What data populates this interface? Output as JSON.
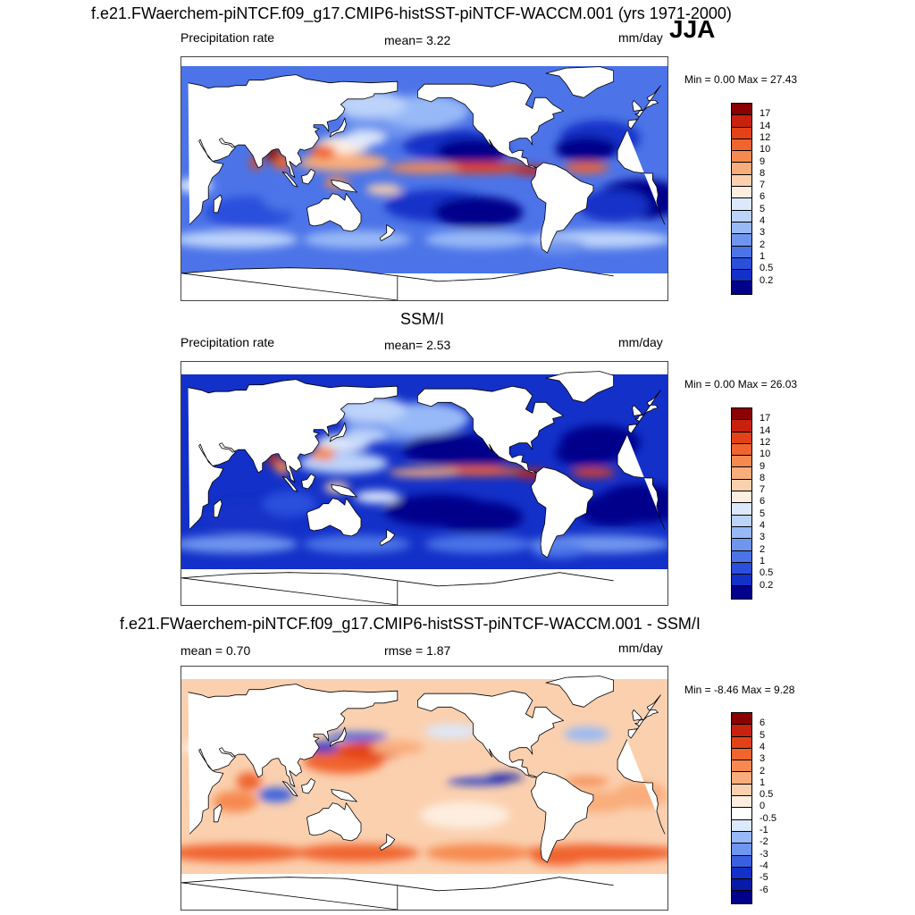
{
  "main_title": "f.e21.FWaerchem-piNTCF.f09_g17.CMIP6-histSST-piNTCF-WACCM.001 (yrs 1971-2000)",
  "season": "JJA",
  "panel1": {
    "left_label": "Precipitation rate",
    "mean": "mean=   3.22",
    "units": "mm/day",
    "minmax": "Min =   0.00 Max =  27.43",
    "levels": [
      "17",
      "14",
      "12",
      "10",
      "9",
      "8",
      "7",
      "6",
      "5",
      "4",
      "3",
      "2",
      "1",
      "0.5",
      "0.2"
    ],
    "colors": [
      "#8b0000",
      "#c8220f",
      "#e34218",
      "#f0642e",
      "#f6894f",
      "#f9ad7c",
      "#fbd0af",
      "#fdeee0",
      "#dce8fb",
      "#bcd3fa",
      "#98b9f7",
      "#6f95ef",
      "#4c74e8",
      "#2a4fdc",
      "#1330c8",
      "#00008b"
    ]
  },
  "panel2": {
    "title": "SSM/I",
    "left_label": "Precipitation rate",
    "mean": "mean=   2.53",
    "units": "mm/day",
    "minmax": "Min =   0.00 Max =  26.03",
    "levels": [
      "17",
      "14",
      "12",
      "10",
      "9",
      "8",
      "7",
      "6",
      "5",
      "4",
      "3",
      "2",
      "1",
      "0.5",
      "0.2"
    ],
    "colors": [
      "#8b0000",
      "#c8220f",
      "#e34218",
      "#f0642e",
      "#f6894f",
      "#f9ad7c",
      "#fbd0af",
      "#fdeee0",
      "#dce8fb",
      "#bcd3fa",
      "#98b9f7",
      "#6f95ef",
      "#4c74e8",
      "#2a4fdc",
      "#1330c8",
      "#00008b"
    ]
  },
  "panel3": {
    "title": "f.e21.FWaerchem-piNTCF.f09_g17.CMIP6-histSST-piNTCF-WACCM.001 - SSM/I",
    "mean": "mean =   0.70",
    "rmse": "rmse =   1.87",
    "units": "mm/day",
    "minmax": "Min =  -8.46 Max =   9.28",
    "levels": [
      "6",
      "5",
      "4",
      "3",
      "2",
      "1",
      "0.5",
      "0",
      "-0.5",
      "-1",
      "-2",
      "-3",
      "-4",
      "-5",
      "-6"
    ],
    "colors": [
      "#8b0000",
      "#c8220f",
      "#e34218",
      "#f0642e",
      "#f6894f",
      "#f9ad7c",
      "#fbd0af",
      "#fdeee0",
      "#ffffff",
      "#dce8fb",
      "#98b9f7",
      "#6f95ef",
      "#3a60e0",
      "#1330c8",
      "#0a1aa8",
      "#00008b"
    ]
  }
}
